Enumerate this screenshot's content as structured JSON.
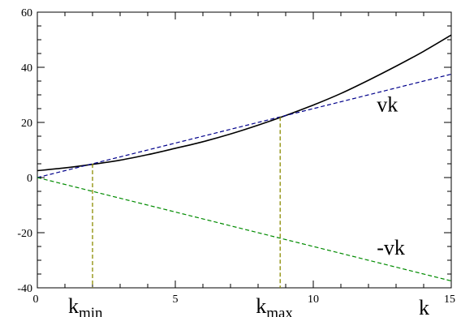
{
  "chart_data": {
    "type": "line",
    "title": "",
    "xlim": [
      0,
      15
    ],
    "ylim": [
      -40,
      60
    ],
    "xlabel": "k",
    "ylabel": "",
    "x_ticks": [
      0,
      5,
      10,
      15
    ],
    "x_tick_labels": [
      "0",
      "5",
      "10",
      "15"
    ],
    "y_ticks": [
      -40,
      -20,
      0,
      20,
      40,
      60
    ],
    "y_tick_labels": [
      "-40",
      "-20",
      "0",
      "20",
      "40",
      "60"
    ],
    "x_minor_step": 1,
    "y_minor_step": 5,
    "grid": false,
    "series": [
      {
        "name": "",
        "style": "solid",
        "color": "#000000",
        "x": [
          0,
          1,
          2,
          3,
          4,
          5,
          6,
          7,
          8,
          9,
          10,
          11,
          12,
          13,
          14,
          15
        ],
        "y": [
          2.5,
          3.5,
          4.8,
          6.3,
          8.3,
          10.6,
          13.0,
          15.8,
          19.0,
          22.5,
          26.3,
          30.5,
          35.3,
          40.4,
          45.8,
          51.7
        ]
      },
      {
        "name": "vk",
        "style": "dashed",
        "color": "#00008b",
        "x": [
          0,
          15
        ],
        "y": [
          0,
          37.5
        ]
      },
      {
        "name": "-vk",
        "style": "dashed",
        "color": "#008b00",
        "x": [
          0,
          15
        ],
        "y": [
          0,
          -37.5
        ]
      }
    ],
    "vlines": [
      {
        "x": 2.0,
        "y_top": 5.0,
        "color": "#8b8b00"
      },
      {
        "x": 8.8,
        "y_top": 22.0,
        "color": "#8b8b00"
      }
    ],
    "annotations": [
      {
        "text": "vk",
        "x": 12.3,
        "y": 24
      },
      {
        "text": "-vk",
        "x": 12.3,
        "y": -28
      }
    ],
    "marker_labels": [
      {
        "base": "k",
        "sub": "min",
        "x": 2.0
      },
      {
        "base": "k",
        "sub": "max",
        "x": 8.8
      }
    ]
  }
}
